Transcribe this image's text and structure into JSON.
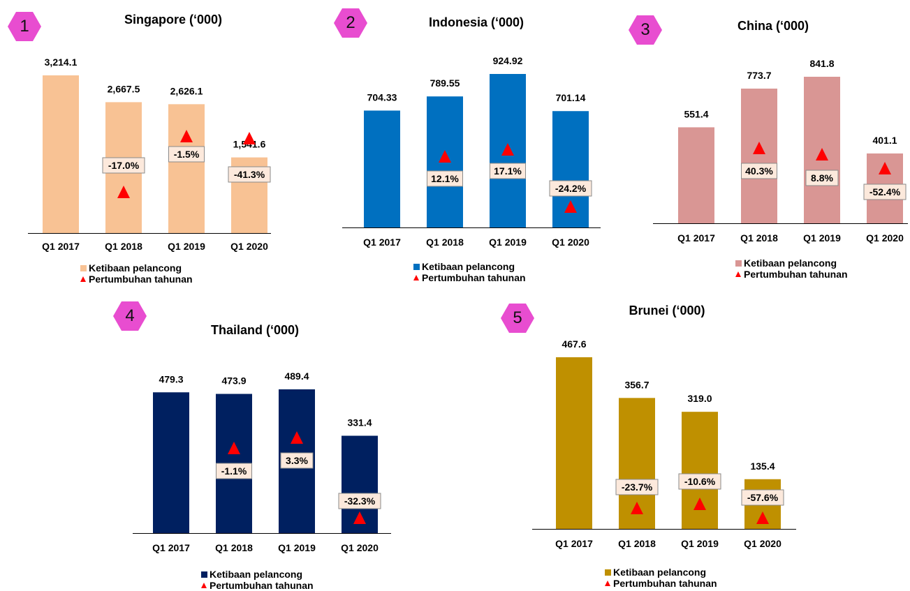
{
  "legend": {
    "arrivals": "Ketibaan pelancong",
    "growth": "Pertumbuhan tahunan"
  },
  "colors": {
    "badge": "#e84dd0",
    "triangle": "#ff0000",
    "label_bg": "#fce9dc"
  },
  "chart_data": [
    {
      "type": "bar",
      "badge": "1",
      "title": "Singapore (‘000)",
      "color": "#f8c294",
      "categories": [
        "Q1 2017",
        "Q1 2018",
        "Q1 2019",
        "Q1 2020"
      ],
      "values": [
        3214.1,
        2667.5,
        2626.1,
        1541.6
      ],
      "value_labels": [
        "3,214.1",
        "2,667.5",
        "2,626.1",
        "1,541.6"
      ],
      "growth": [
        null,
        -17.0,
        -1.5,
        -41.3
      ],
      "growth_labels": [
        "",
        "-17.0%",
        "-1.5%",
        "-41.3%"
      ]
    },
    {
      "type": "bar",
      "badge": "2",
      "title": "Indonesia (‘000)",
      "color": "#0070c0",
      "categories": [
        "Q1 2017",
        "Q1 2018",
        "Q1 2019",
        "Q1 2020"
      ],
      "values": [
        704.33,
        789.55,
        924.92,
        701.14
      ],
      "value_labels": [
        "704.33",
        "789.55",
        "924.92",
        "701.14"
      ],
      "growth": [
        null,
        12.1,
        17.1,
        -24.2
      ],
      "growth_labels": [
        "",
        "12.1%",
        "17.1%",
        "-24.2%"
      ]
    },
    {
      "type": "bar",
      "badge": "3",
      "title": "China (‘000)",
      "color": "#d99694",
      "categories": [
        "Q1 2017",
        "Q1 2018",
        "Q1 2019",
        "Q1 2020"
      ],
      "values": [
        551.4,
        773.7,
        841.8,
        401.1
      ],
      "value_labels": [
        "551.4",
        "773.7",
        "841.8",
        "401.1"
      ],
      "growth": [
        null,
        40.3,
        8.8,
        -52.4
      ],
      "growth_labels": [
        "",
        "40.3%",
        "8.8%",
        "-52.4%"
      ]
    },
    {
      "type": "bar",
      "badge": "4",
      "title": "Thailand (‘000)",
      "color": "#002060",
      "categories": [
        "Q1 2017",
        "Q1 2018",
        "Q1 2019",
        "Q1 2020"
      ],
      "values": [
        479.3,
        473.9,
        489.4,
        331.4
      ],
      "value_labels": [
        "479.3",
        "473.9",
        "489.4",
        "331.4"
      ],
      "growth": [
        null,
        -1.1,
        3.3,
        -32.3
      ],
      "growth_labels": [
        "",
        "-1.1%",
        "3.3%",
        "-32.3%"
      ]
    },
    {
      "type": "bar",
      "badge": "5",
      "title": "Brunei (‘000)",
      "color": "#bf9000",
      "categories": [
        "Q1 2017",
        "Q1 2018",
        "Q1 2019",
        "Q1 2020"
      ],
      "values": [
        467.6,
        356.7,
        319.0,
        135.4
      ],
      "value_labels": [
        "467.6",
        "356.7",
        "319.0",
        "135.4"
      ],
      "growth": [
        null,
        -23.7,
        -10.6,
        -57.6
      ],
      "growth_labels": [
        "",
        "-23.7%",
        "-10.6%",
        "-57.6%"
      ]
    }
  ]
}
